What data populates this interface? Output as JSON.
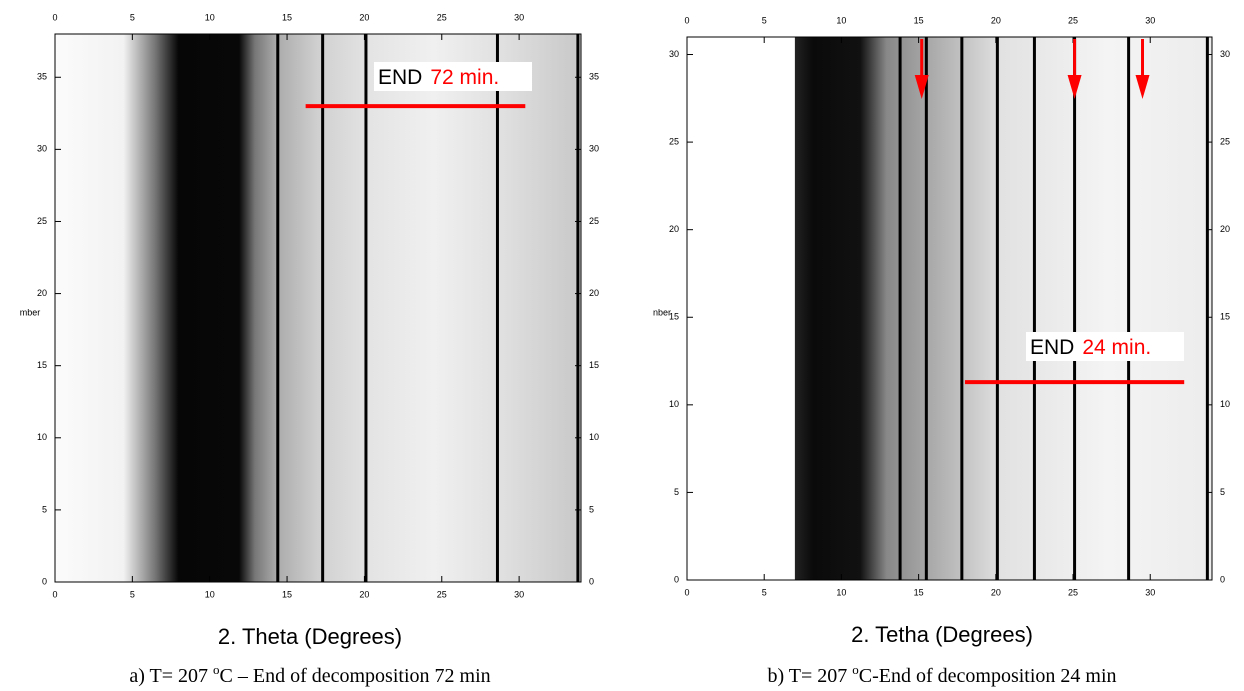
{
  "chart_data": [
    {
      "type": "heatmap",
      "x_label": "2. Theta (Degrees)",
      "y_label": "mber",
      "xlim": [
        0,
        34
      ],
      "xticks": [
        0,
        5,
        10,
        15,
        20,
        25,
        30
      ],
      "ylim": [
        0,
        38
      ],
      "yticks": [
        0,
        5,
        10,
        15,
        20,
        25,
        30,
        35
      ],
      "peaks": [
        14.4,
        17.3,
        20.1,
        28.6,
        33.8
      ],
      "annotation": {
        "label": "END",
        "value_label": "72 min.",
        "color": "#ff0000",
        "line_x": [
          16.2,
          30.4
        ],
        "line_y": 33
      },
      "caption": {
        "prefix": "a) T= 207 ",
        "superscript": "o",
        "suffix": "C – End of decomposition 72 min"
      }
    },
    {
      "type": "heatmap",
      "x_label": "2. Tetha (Degrees)",
      "y_label": "nber",
      "xlim": [
        0,
        34
      ],
      "xticks": [
        0,
        5,
        10,
        15,
        20,
        25,
        30
      ],
      "ylim": [
        0,
        31
      ],
      "yticks": [
        0,
        5,
        10,
        15,
        20,
        25,
        30
      ],
      "peaks": [
        13.8,
        15.5,
        17.8,
        20.1,
        22.5,
        25.1,
        28.6,
        33.7
      ],
      "arrows_x": [
        15.2,
        25.1,
        29.5
      ],
      "annotation": {
        "label": "END",
        "value_label": "24 min.",
        "color": "#ff0000",
        "line_x": [
          18,
          32.2
        ],
        "line_y": 11.3
      },
      "caption": {
        "prefix": "b) T= 207 ",
        "superscript": "o",
        "suffix": "C-End of decomposition 24 min"
      }
    }
  ]
}
